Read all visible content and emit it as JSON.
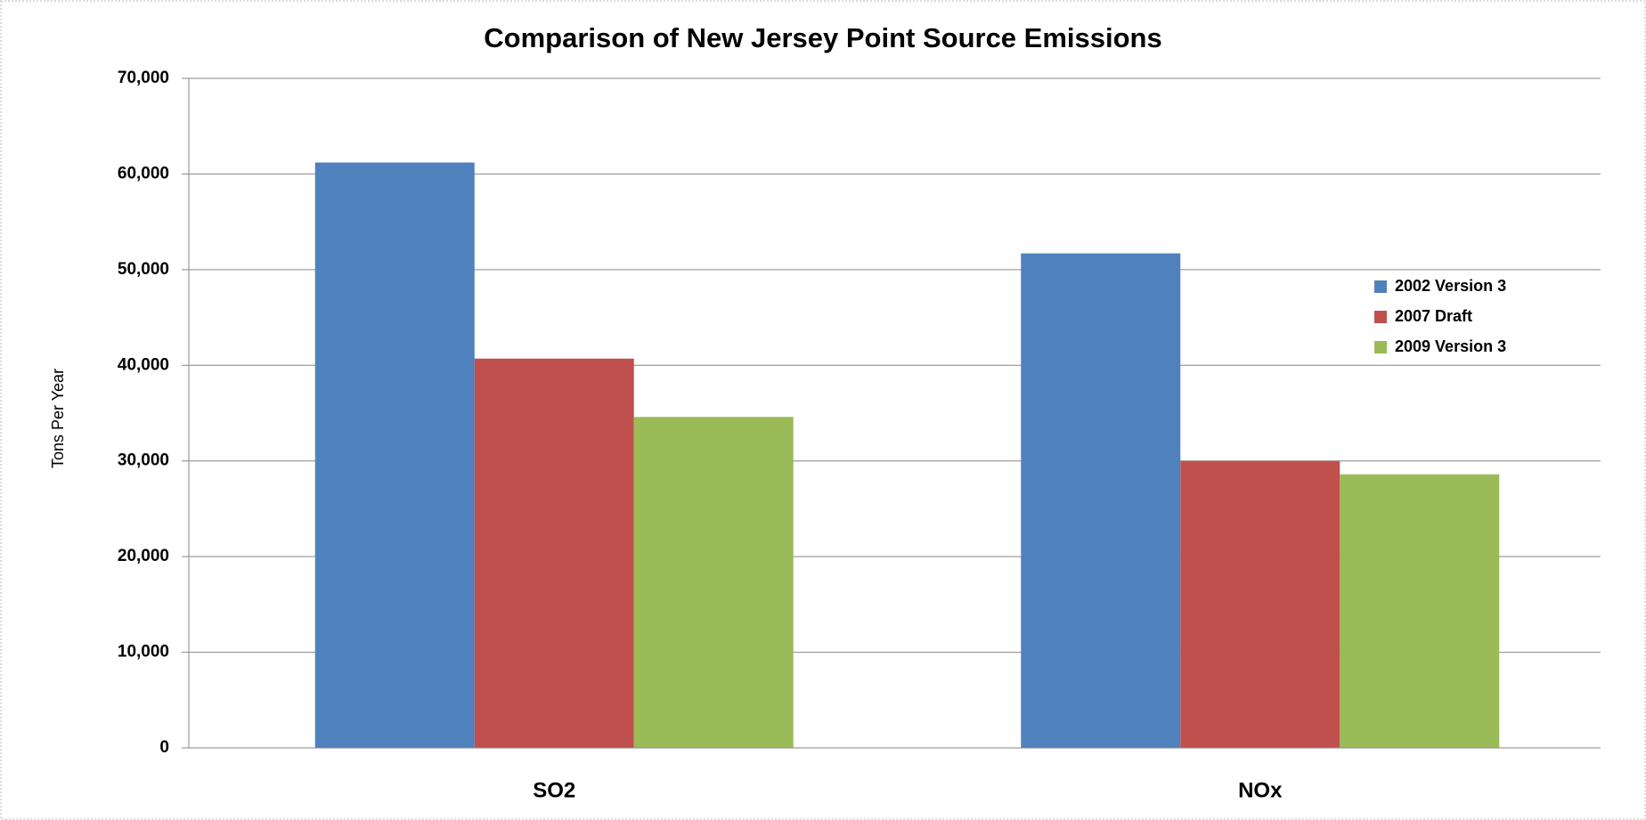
{
  "chart_data": {
    "type": "bar",
    "title": "Comparison of New Jersey Point Source Emissions",
    "y_label": "Tons Per Year",
    "categories": [
      "SO2",
      "NOx"
    ],
    "series": [
      {
        "name": "2002 Version 3",
        "color": "#4f81bd",
        "values": [
          61200,
          51700
        ]
      },
      {
        "name": "2007 Draft",
        "color": "#c0504d",
        "values": [
          40700,
          30000
        ]
      },
      {
        "name": "2009 Version 3",
        "color": "#9bbb59",
        "values": [
          34600,
          28600
        ]
      }
    ],
    "ylim": [
      0,
      70000
    ],
    "yticks": [
      {
        "value": 0,
        "label": "0"
      },
      {
        "value": 10000,
        "label": "10,000"
      },
      {
        "value": 20000,
        "label": "20,000"
      },
      {
        "value": 30000,
        "label": "30,000"
      },
      {
        "value": 40000,
        "label": "40,000"
      },
      {
        "value": 50000,
        "label": "50,000"
      },
      {
        "value": 60000,
        "label": "60,000"
      },
      {
        "value": 70000,
        "label": "70,000"
      }
    ],
    "grid": true,
    "legend": "right"
  }
}
